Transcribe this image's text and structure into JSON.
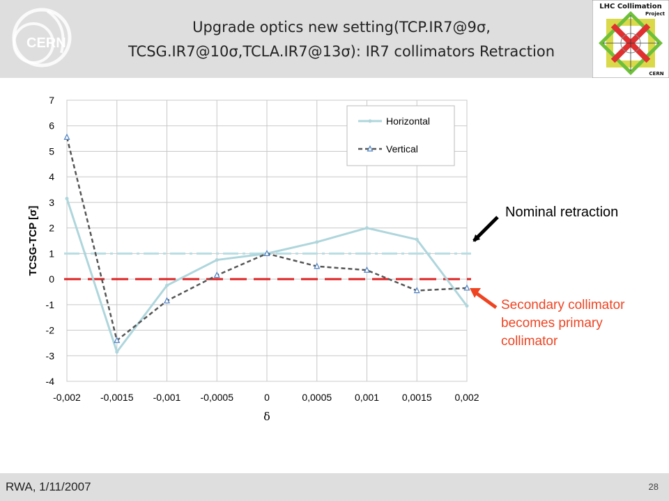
{
  "header": {
    "title_line1": "Upgrade optics  new setting(TCP.IR7@9σ,",
    "title_line2": "TCSG.IR7@10σ,TCLA.IR7@13σ): IR7 collimators Retraction",
    "cern_logo_text": "CERN",
    "lhc_logo_text": "LHC Collimation",
    "lhc_logo_sub": "Project",
    "lhc_logo_cern": "CERN"
  },
  "annotations": {
    "nominal": "Nominal retraction",
    "secondary": "Secondary collimator becomes primary collimator"
  },
  "footer": {
    "left": "RWA, 1/11/2007",
    "page": "28"
  },
  "colors": {
    "horizontal": "#aed6dc",
    "vertical": "#555555",
    "nominal_line": "#b8dde3",
    "zero_line": "#dd2222",
    "red_arrow": "#ee4422",
    "black_arrow": "#000000"
  },
  "chart_data": {
    "type": "line",
    "x": [
      -0.002,
      -0.0015,
      -0.001,
      -0.0005,
      0,
      0.0005,
      0.001,
      0.0015,
      0.002
    ],
    "x_tick_labels": [
      "-0,002",
      "-0,0015",
      "-0,001",
      "-0,0005",
      "0",
      "0,0005",
      "0,001",
      "0,0015",
      "0,002"
    ],
    "y_ticks": [
      7,
      6,
      5,
      4,
      3,
      2,
      1,
      0,
      -1,
      -2,
      -3,
      -4
    ],
    "xlabel": "δ",
    "ylabel": "TCSG-TCP [σ]",
    "ylim": [
      -4,
      7
    ],
    "grid": true,
    "legend_position": "top-right",
    "series": [
      {
        "name": "Horizontal",
        "values": [
          3.15,
          -2.85,
          -0.25,
          0.75,
          1.0,
          1.45,
          2.0,
          1.55,
          -1.05
        ]
      },
      {
        "name": "Vertical",
        "values": [
          5.55,
          -2.4,
          -0.85,
          0.15,
          1.0,
          0.5,
          0.35,
          -0.45,
          -0.35
        ]
      }
    ],
    "reference_lines": [
      {
        "y": 1,
        "style": "dash-dot"
      },
      {
        "y": 0,
        "style": "dashed"
      }
    ]
  }
}
